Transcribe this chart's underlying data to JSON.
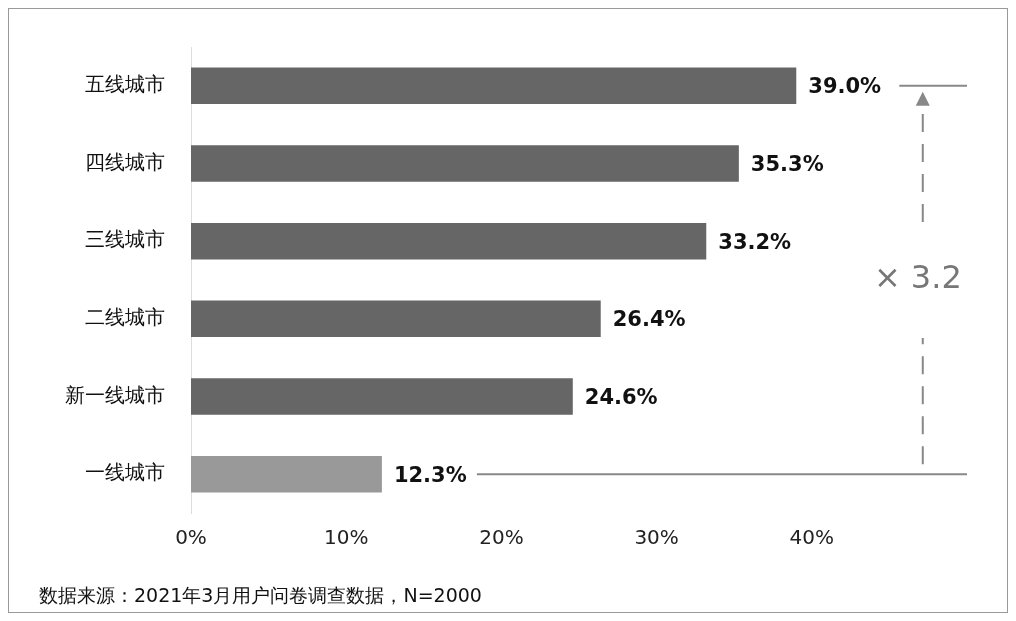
{
  "chart_data": {
    "type": "bar",
    "orientation": "horizontal",
    "categories": [
      "五线城市",
      "四线城市",
      "三线城市",
      "二线城市",
      "新一线城市",
      "一线城市"
    ],
    "values": [
      39.0,
      35.3,
      33.2,
      26.4,
      24.6,
      12.3
    ],
    "colors": [
      "#666666",
      "#666666",
      "#666666",
      "#666666",
      "#666666",
      "#999999"
    ],
    "value_labels": [
      "39.0%",
      "35.3%",
      "33.2%",
      "26.4%",
      "24.6%",
      "12.3%"
    ],
    "xlim": [
      0,
      50
    ],
    "xticks": [
      {
        "value": 0,
        "label": "0%"
      },
      {
        "value": 10,
        "label": "10%"
      },
      {
        "value": 20,
        "label": "20%"
      },
      {
        "value": 30,
        "label": "30%"
      },
      {
        "value": 40,
        "label": "40%"
      }
    ],
    "grid": false,
    "legend": false,
    "annotations": [
      "× 3.2",
      "数据来源：2021年3月用户问卷调查数据，N=2000"
    ]
  }
}
